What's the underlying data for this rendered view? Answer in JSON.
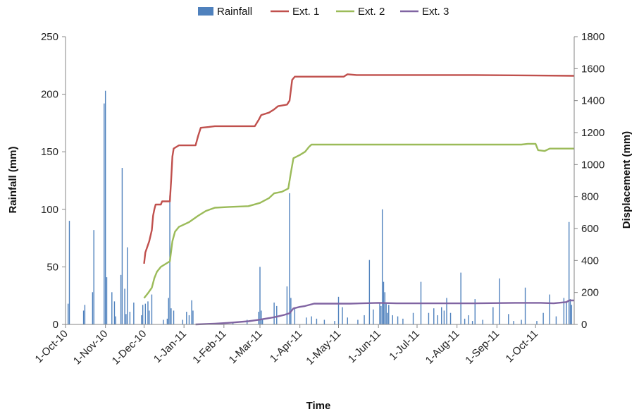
{
  "chart_data": {
    "type": "bar+line",
    "title": "",
    "xlabel": "Time",
    "ylabel_left": "Rainfall (mm)",
    "ylabel_right": "Displacement (mm)",
    "y_left_range": [
      0,
      250
    ],
    "y_left_ticks": [
      0,
      50,
      100,
      150,
      200,
      250
    ],
    "y_right_range": [
      0,
      1800
    ],
    "y_right_ticks": [
      0,
      200,
      400,
      600,
      800,
      1000,
      1200,
      1400,
      1600,
      1800
    ],
    "x_range": [
      "2010-10-01",
      "2011-10-31"
    ],
    "x_ticks": [
      {
        "date": "2010-10-01",
        "label": "1-Oct-10"
      },
      {
        "date": "2010-11-01",
        "label": "1-Nov-10"
      },
      {
        "date": "2010-12-01",
        "label": "1-Dec-10"
      },
      {
        "date": "2011-01-01",
        "label": "1-Jan-11"
      },
      {
        "date": "2011-02-01",
        "label": "1-Feb-11"
      },
      {
        "date": "2011-03-01",
        "label": "1-Mar-11"
      },
      {
        "date": "2011-04-01",
        "label": "1-Apr-11"
      },
      {
        "date": "2011-05-01",
        "label": "1-May-11"
      },
      {
        "date": "2011-06-01",
        "label": "1-Jun-11"
      },
      {
        "date": "2011-07-01",
        "label": "1-Jul-11"
      },
      {
        "date": "2011-08-01",
        "label": "1-Aug-11"
      },
      {
        "date": "2011-09-01",
        "label": "1-Sep-11"
      },
      {
        "date": "2011-10-01",
        "label": "1-Oct-11"
      }
    ],
    "grid": false,
    "legend_position": "top",
    "legend": [
      {
        "name": "Rainfall",
        "type": "bar",
        "color": "#4f81bd"
      },
      {
        "name": "Ext. 1",
        "type": "line",
        "color": "#c0504d"
      },
      {
        "name": "Ext. 2",
        "type": "line",
        "color": "#9bbb59"
      },
      {
        "name": "Ext. 3",
        "type": "line",
        "color": "#8064a2"
      }
    ],
    "rainfall": {
      "name": "Rainfall",
      "axis": "left",
      "color": "#4f81bd",
      "points": [
        [
          "2010-10-03",
          18
        ],
        [
          "2010-10-04",
          90
        ],
        [
          "2010-10-15",
          12
        ],
        [
          "2010-10-16",
          17
        ],
        [
          "2010-10-22",
          28
        ],
        [
          "2010-10-23",
          82
        ],
        [
          "2010-10-31",
          192
        ],
        [
          "2010-11-01",
          203
        ],
        [
          "2010-11-02",
          41
        ],
        [
          "2010-11-06",
          28
        ],
        [
          "2010-11-08",
          20
        ],
        [
          "2010-11-09",
          7
        ],
        [
          "2010-11-13",
          43
        ],
        [
          "2010-11-14",
          136
        ],
        [
          "2010-11-16",
          31
        ],
        [
          "2010-11-17",
          9
        ],
        [
          "2010-11-18",
          67
        ],
        [
          "2010-11-20",
          11
        ],
        [
          "2010-11-23",
          19
        ],
        [
          "2010-11-29",
          8
        ],
        [
          "2010-11-30",
          17
        ],
        [
          "2010-12-02",
          18
        ],
        [
          "2010-12-04",
          20
        ],
        [
          "2010-12-05",
          12
        ],
        [
          "2010-12-07",
          26
        ],
        [
          "2010-12-16",
          4
        ],
        [
          "2010-12-19",
          5
        ],
        [
          "2010-12-20",
          23
        ],
        [
          "2010-12-21",
          112
        ],
        [
          "2010-12-22",
          14
        ],
        [
          "2010-12-24",
          12
        ],
        [
          "2010-12-31",
          4
        ],
        [
          "2011-01-03",
          11
        ],
        [
          "2011-01-05",
          8
        ],
        [
          "2011-01-07",
          21
        ],
        [
          "2011-01-08",
          12
        ],
        [
          "2011-02-08",
          2
        ],
        [
          "2011-02-19",
          4
        ],
        [
          "2011-02-28",
          11
        ],
        [
          "2011-03-01",
          50
        ],
        [
          "2011-03-02",
          12
        ],
        [
          "2011-03-03",
          5
        ],
        [
          "2011-03-12",
          19
        ],
        [
          "2011-03-14",
          16
        ],
        [
          "2011-03-22",
          33
        ],
        [
          "2011-03-24",
          114
        ],
        [
          "2011-03-25",
          23
        ],
        [
          "2011-03-28",
          15
        ],
        [
          "2011-04-06",
          6
        ],
        [
          "2011-04-10",
          7
        ],
        [
          "2011-04-14",
          5
        ],
        [
          "2011-04-20",
          4
        ],
        [
          "2011-04-28",
          3
        ],
        [
          "2011-05-01",
          24
        ],
        [
          "2011-05-04",
          15
        ],
        [
          "2011-05-08",
          6
        ],
        [
          "2011-05-16",
          4
        ],
        [
          "2011-05-21",
          8
        ],
        [
          "2011-05-25",
          56
        ],
        [
          "2011-05-28",
          13
        ],
        [
          "2011-06-02",
          19
        ],
        [
          "2011-06-03",
          16
        ],
        [
          "2011-06-04",
          100
        ],
        [
          "2011-06-05",
          37
        ],
        [
          "2011-06-06",
          28
        ],
        [
          "2011-06-07",
          18
        ],
        [
          "2011-06-08",
          10
        ],
        [
          "2011-06-09",
          17
        ],
        [
          "2011-06-12",
          8
        ],
        [
          "2011-06-16",
          7
        ],
        [
          "2011-06-20",
          5
        ],
        [
          "2011-06-28",
          10
        ],
        [
          "2011-07-04",
          37
        ],
        [
          "2011-07-10",
          10
        ],
        [
          "2011-07-14",
          14
        ],
        [
          "2011-07-17",
          8
        ],
        [
          "2011-07-20",
          15
        ],
        [
          "2011-07-22",
          12
        ],
        [
          "2011-07-24",
          23
        ],
        [
          "2011-07-27",
          10
        ],
        [
          "2011-08-04",
          45
        ],
        [
          "2011-08-07",
          5
        ],
        [
          "2011-08-10",
          8
        ],
        [
          "2011-08-13",
          3
        ],
        [
          "2011-08-15",
          22
        ],
        [
          "2011-08-21",
          4
        ],
        [
          "2011-08-29",
          15
        ],
        [
          "2011-09-03",
          40
        ],
        [
          "2011-09-10",
          9
        ],
        [
          "2011-09-14",
          3
        ],
        [
          "2011-09-20",
          4
        ],
        [
          "2011-09-23",
          32
        ],
        [
          "2011-10-02",
          3
        ],
        [
          "2011-10-07",
          10
        ],
        [
          "2011-10-12",
          26
        ],
        [
          "2011-10-17",
          7
        ],
        [
          "2011-10-23",
          23
        ],
        [
          "2011-10-25",
          20
        ],
        [
          "2011-10-27",
          89
        ],
        [
          "2011-10-28",
          22
        ],
        [
          "2011-10-29",
          17
        ]
      ]
    },
    "series": [
      {
        "name": "Ext. 1",
        "axis": "right",
        "color": "#c0504d",
        "points": [
          [
            "2010-12-01",
            380
          ],
          [
            "2010-12-02",
            450
          ],
          [
            "2010-12-05",
            520
          ],
          [
            "2010-12-07",
            590
          ],
          [
            "2010-12-08",
            680
          ],
          [
            "2010-12-09",
            720
          ],
          [
            "2010-12-10",
            750
          ],
          [
            "2010-12-14",
            750
          ],
          [
            "2010-12-15",
            770
          ],
          [
            "2010-12-21",
            770
          ],
          [
            "2010-12-22",
            900
          ],
          [
            "2010-12-23",
            1050
          ],
          [
            "2010-12-24",
            1100
          ],
          [
            "2010-12-26",
            1110
          ],
          [
            "2010-12-28",
            1120
          ],
          [
            "2011-01-10",
            1120
          ],
          [
            "2011-01-12",
            1180
          ],
          [
            "2011-01-14",
            1230
          ],
          [
            "2011-01-20",
            1235
          ],
          [
            "2011-01-25",
            1240
          ],
          [
            "2011-02-05",
            1240
          ],
          [
            "2011-02-25",
            1240
          ],
          [
            "2011-02-28",
            1280
          ],
          [
            "2011-03-02",
            1310
          ],
          [
            "2011-03-08",
            1325
          ],
          [
            "2011-03-12",
            1345
          ],
          [
            "2011-03-15",
            1365
          ],
          [
            "2011-03-22",
            1375
          ],
          [
            "2011-03-24",
            1400
          ],
          [
            "2011-03-26",
            1530
          ],
          [
            "2011-03-28",
            1550
          ],
          [
            "2011-05-05",
            1550
          ],
          [
            "2011-05-08",
            1565
          ],
          [
            "2011-05-15",
            1560
          ],
          [
            "2011-08-15",
            1560
          ],
          [
            "2011-10-31",
            1555
          ]
        ]
      },
      {
        "name": "Ext. 2",
        "axis": "right",
        "color": "#9bbb59",
        "points": [
          [
            "2010-12-01",
            165
          ],
          [
            "2010-12-04",
            195
          ],
          [
            "2010-12-07",
            230
          ],
          [
            "2010-12-09",
            290
          ],
          [
            "2010-12-11",
            330
          ],
          [
            "2010-12-14",
            360
          ],
          [
            "2010-12-18",
            380
          ],
          [
            "2010-12-21",
            395
          ],
          [
            "2010-12-23",
            520
          ],
          [
            "2010-12-25",
            580
          ],
          [
            "2010-12-28",
            610
          ],
          [
            "2011-01-05",
            640
          ],
          [
            "2011-01-12",
            680
          ],
          [
            "2011-01-18",
            710
          ],
          [
            "2011-01-25",
            730
          ],
          [
            "2011-02-05",
            735
          ],
          [
            "2011-02-20",
            740
          ],
          [
            "2011-03-01",
            760
          ],
          [
            "2011-03-08",
            790
          ],
          [
            "2011-03-12",
            820
          ],
          [
            "2011-03-18",
            830
          ],
          [
            "2011-03-23",
            850
          ],
          [
            "2011-03-25",
            950
          ],
          [
            "2011-03-27",
            1040
          ],
          [
            "2011-04-01",
            1060
          ],
          [
            "2011-04-05",
            1080
          ],
          [
            "2011-04-08",
            1110
          ],
          [
            "2011-04-10",
            1125
          ],
          [
            "2011-09-20",
            1125
          ],
          [
            "2011-09-25",
            1130
          ],
          [
            "2011-10-01",
            1130
          ],
          [
            "2011-10-03",
            1090
          ],
          [
            "2011-10-08",
            1085
          ],
          [
            "2011-10-12",
            1100
          ],
          [
            "2011-10-31",
            1100
          ]
        ]
      },
      {
        "name": "Ext. 3",
        "axis": "right",
        "color": "#8064a2",
        "points": [
          [
            "2011-01-10",
            0
          ],
          [
            "2011-01-25",
            5
          ],
          [
            "2011-02-05",
            10
          ],
          [
            "2011-02-20",
            20
          ],
          [
            "2011-03-01",
            30
          ],
          [
            "2011-03-12",
            45
          ],
          [
            "2011-03-20",
            60
          ],
          [
            "2011-03-24",
            70
          ],
          [
            "2011-03-27",
            100
          ],
          [
            "2011-04-01",
            110
          ],
          [
            "2011-04-05",
            115
          ],
          [
            "2011-04-12",
            130
          ],
          [
            "2011-05-10",
            130
          ],
          [
            "2011-06-01",
            135
          ],
          [
            "2011-06-15",
            132
          ],
          [
            "2011-08-15",
            132
          ],
          [
            "2011-09-15",
            135
          ],
          [
            "2011-10-05",
            135
          ],
          [
            "2011-10-15",
            132
          ],
          [
            "2011-10-25",
            140
          ],
          [
            "2011-10-27",
            150
          ],
          [
            "2011-10-31",
            150
          ]
        ]
      }
    ]
  }
}
